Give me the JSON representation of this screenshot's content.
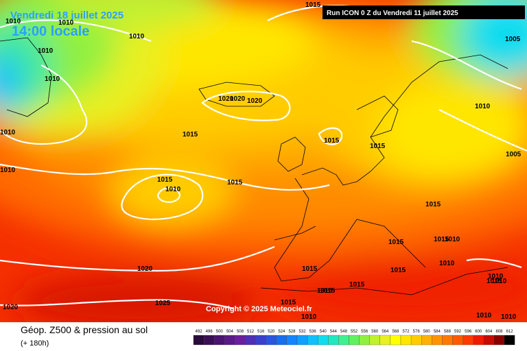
{
  "header": {
    "date": "Vendredi 18 juillet 2025",
    "time": "14:00 locale",
    "run": "Run ICON 0 Z du Vendredi 11 juillet 2025"
  },
  "copyright": "Copyright © 2025 Meteociel.fr",
  "legend": {
    "title": "Géop. Z500 & pression au sol",
    "lead": "(+ 180h)",
    "scale": [
      {
        "label": "492",
        "color": "#2a0a3a"
      },
      {
        "label": "496",
        "color": "#3b0f55"
      },
      {
        "label": "500",
        "color": "#4a1470"
      },
      {
        "label": "504",
        "color": "#5a1a8a"
      },
      {
        "label": "508",
        "color": "#6a1fa0"
      },
      {
        "label": "512",
        "color": "#4f2fb5"
      },
      {
        "label": "516",
        "color": "#3a3fcc"
      },
      {
        "label": "520",
        "color": "#2a55e0"
      },
      {
        "label": "524",
        "color": "#1a6cf0"
      },
      {
        "label": "528",
        "color": "#1585ff"
      },
      {
        "label": "532",
        "color": "#10a0ff"
      },
      {
        "label": "536",
        "color": "#10c0ff"
      },
      {
        "label": "540",
        "color": "#10dcf0"
      },
      {
        "label": "544",
        "color": "#20e8c0"
      },
      {
        "label": "548",
        "color": "#40f090"
      },
      {
        "label": "552",
        "color": "#60f060"
      },
      {
        "label": "556",
        "color": "#90f040"
      },
      {
        "label": "560",
        "color": "#c0f030"
      },
      {
        "label": "564",
        "color": "#e8f020"
      },
      {
        "label": "568",
        "color": "#ffff00"
      },
      {
        "label": "572",
        "color": "#ffe600"
      },
      {
        "label": "576",
        "color": "#ffcc00"
      },
      {
        "label": "580",
        "color": "#ffb000"
      },
      {
        "label": "584",
        "color": "#ff9400"
      },
      {
        "label": "588",
        "color": "#ff7800"
      },
      {
        "label": "592",
        "color": "#ff5a00"
      },
      {
        "label": "596",
        "color": "#ff3a00"
      },
      {
        "label": "600",
        "color": "#f01a00"
      },
      {
        "label": "604",
        "color": "#c80a00"
      },
      {
        "label": "608",
        "color": "#8a0000"
      },
      {
        "label": "612",
        "color": "#000000"
      }
    ]
  },
  "isobar_labels": [
    "1015",
    "1010",
    "1010",
    "1010",
    "1010",
    "1005",
    "1010",
    "1020",
    "1020",
    "1020",
    "1010",
    "1010",
    "1015",
    "1015",
    "1015",
    "1005",
    "1010",
    "1015",
    "1010",
    "1015",
    "1015",
    "1015",
    "1010",
    "1015",
    "1010",
    "1015",
    "1015",
    "1020",
    "1010",
    "1015",
    "1010",
    "1010",
    "1015",
    "1015",
    "1025",
    "1020",
    "1015",
    "1010",
    "1010",
    "1010"
  ]
}
